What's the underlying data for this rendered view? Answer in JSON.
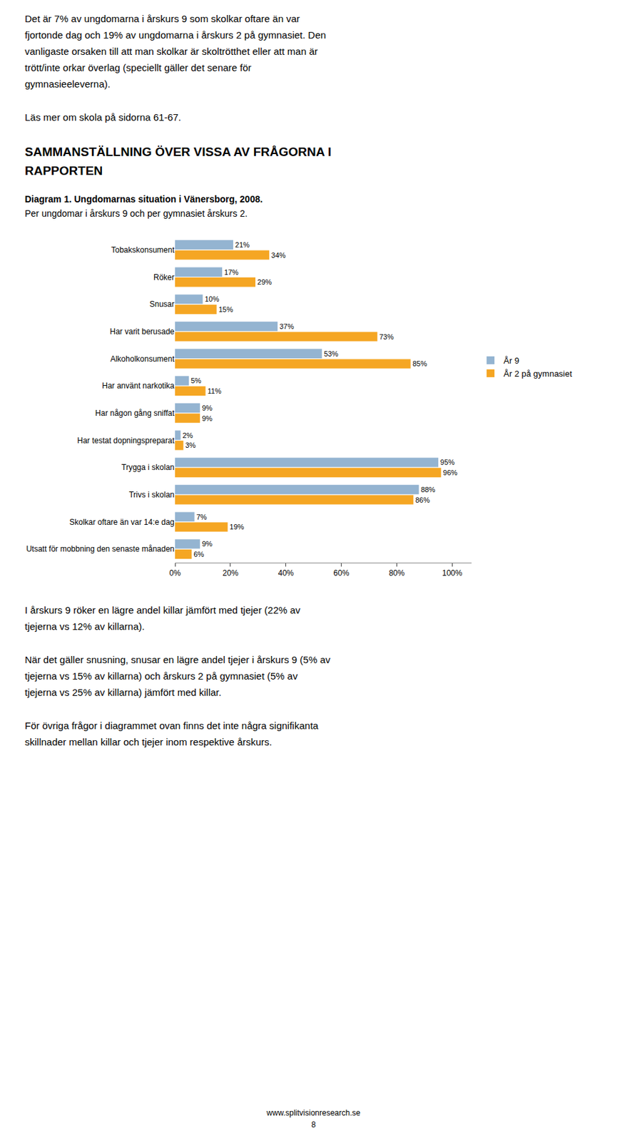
{
  "chart_data": {
    "type": "bar",
    "orientation": "horizontal",
    "title": "Diagram 1. Ungdomarnas situation i Vänersborg, 2008.",
    "subtitle": "Per ungdomar i årskurs 9 och per gymnasiet årskurs 2.",
    "annotations": [
      [
        "Det är 7% av ungdomarna i årskurs 9 som skolkar oftare än var",
        "fjortonde dag och 19% av ungdomarna i årskurs 2 på gymnasiet. Den",
        "vanligaste orsaken till att man skolkar är skoltrötthet eller att man är",
        "trött/inte orkar överlag (speciellt gäller det senare för",
        "gymnasieeleverna)."
      ],
      [
        "Läs mer om skola på sidorna 61-67."
      ],
      [
        "SAMMANSTÄLLNING ÖVER VISSA AV FRÅGORNA I",
        "RAPPORTEN"
      ],
      [
        "I årskurs 9 röker en lägre andel killar jämfört med tjejer (22% av",
        "tjejerna vs 12% av killarna)."
      ],
      [
        "När det gäller snusning, snusar en lägre andel tjejer i årskurs 9 (5% av",
        "tjejerna vs 15% av killarna) och årskurs 2 på gymnasiet (5% av",
        "tjejerna vs 25% av killarna) jämfört med killar."
      ],
      [
        "För övriga frågor i diagrammet ovan finns det inte några signifikanta",
        "skillnader mellan killar och tjejer inom respektive årskurs."
      ],
      [
        "www.splitvisionresearch.se"
      ],
      [
        "8"
      ]
    ],
    "categories": [
      "Tobakskonsument",
      "Röker",
      "Snusar",
      "Har varit berusade",
      "Alkoholkonsument",
      "Har använt narkotika",
      "Har någon gång sniffat",
      "Har testat dopningspreparat",
      "Trygga i skolan",
      "Trivs i skolan",
      "Skolkar oftare än var 14:e dag",
      "Utsatt för mobbning den senaste månaden"
    ],
    "series": [
      {
        "name": "År 9",
        "color": "#94b4d1",
        "values": [
          21,
          17,
          10,
          37,
          53,
          5,
          9,
          2,
          95,
          88,
          7,
          9
        ],
        "value_labels": [
          "21%",
          "17%",
          "10%",
          "37%",
          "53%",
          "5%",
          "9%",
          "2%",
          "95%",
          "88%",
          "7%",
          "9%"
        ]
      },
      {
        "name": "År 2 på gymnasiet",
        "color": "#f5a623",
        "values": [
          34,
          29,
          15,
          73,
          85,
          11,
          9,
          3,
          96,
          86,
          19,
          6
        ],
        "value_labels": [
          "34%",
          "29%",
          "15%",
          "73%",
          "85%",
          "11%",
          "9%",
          "3%",
          "96%",
          "86%",
          "19%",
          "6%"
        ]
      }
    ],
    "xlim": [
      0,
      107
    ],
    "xticks": [
      {
        "value": 0,
        "label": "0%"
      },
      {
        "value": 20,
        "label": "20%"
      },
      {
        "value": 40,
        "label": "40%"
      },
      {
        "value": 60,
        "label": "60%"
      },
      {
        "value": 80,
        "label": "80%"
      },
      {
        "value": 100,
        "label": "100%"
      }
    ],
    "grid": false,
    "legend": "right",
    "data_labels": true
  }
}
